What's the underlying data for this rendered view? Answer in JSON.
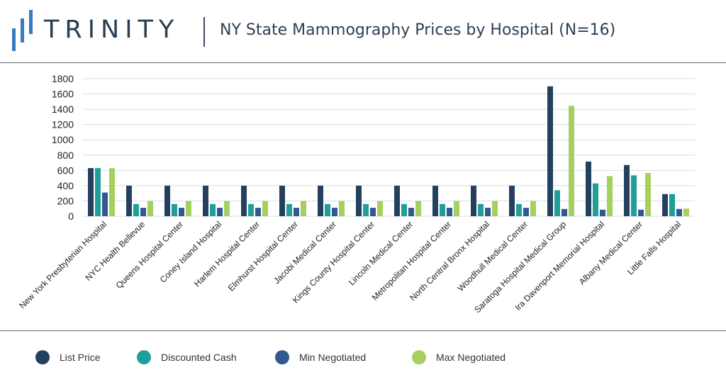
{
  "header": {
    "brand": "TRINITY",
    "title": "NY State Mammography Prices by Hospital (N=16)"
  },
  "colors": {
    "brand_text": "#2b3d52",
    "series": [
      "#23405f",
      "#1f9e9a",
      "#30598f",
      "#a6cf5f"
    ]
  },
  "chart_data": {
    "type": "bar",
    "title": "",
    "xlabel": "",
    "ylabel": "",
    "ylim": [
      0,
      1800
    ],
    "yticks": [
      0,
      200,
      400,
      600,
      800,
      1000,
      1200,
      1400,
      1600,
      1800
    ],
    "grid": true,
    "legend_position": "bottom",
    "categories": [
      "New York Presbyterian Hospital",
      "NYC Health Bellevue",
      "Queens Hospital Center",
      "Coney Island Hospital",
      "Harlem Hospital Center",
      "Elmhurst Hospital Center",
      "Jacobi Medical Center",
      "Kings County Hospital Center",
      "Lincoln Medical Center",
      "Metropolitan Hospital Center",
      "North Central Bronx Hospital",
      "Woodhull Medical Center",
      "Saratoga Hospital Medical Group",
      "Ira Davenport Memorial Hospital",
      "Albany Medical Center",
      "Little Falls Hospital"
    ],
    "series": [
      {
        "name": "List Price",
        "values": [
          630,
          400,
          400,
          400,
          400,
          400,
          400,
          400,
          400,
          400,
          400,
          400,
          1700,
          715,
          670,
          290
        ]
      },
      {
        "name": "Discounted Cash",
        "values": [
          630,
          160,
          160,
          160,
          160,
          160,
          160,
          160,
          160,
          160,
          160,
          160,
          340,
          430,
          535,
          290
        ]
      },
      {
        "name": "Min Negotiated",
        "values": [
          310,
          110,
          110,
          110,
          110,
          110,
          110,
          110,
          110,
          110,
          110,
          110,
          95,
          85,
          85,
          95
        ]
      },
      {
        "name": "Max Negotiated",
        "values": [
          630,
          200,
          200,
          200,
          200,
          200,
          200,
          200,
          200,
          200,
          200,
          200,
          1445,
          525,
          565,
          100
        ]
      }
    ]
  }
}
